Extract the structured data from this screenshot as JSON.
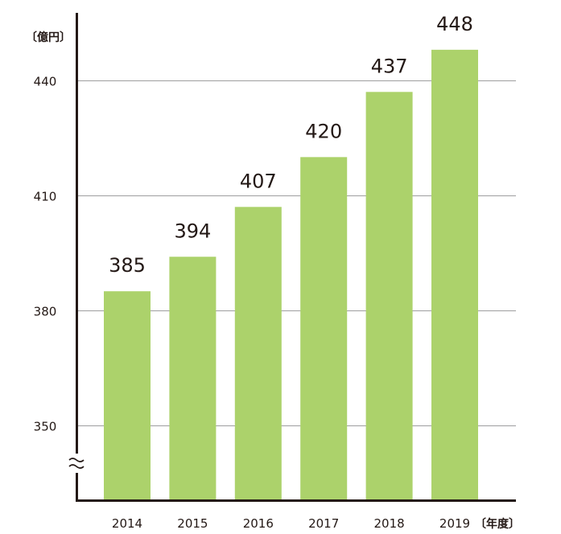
{
  "chart_data": {
    "type": "bar",
    "categories": [
      "2014",
      "2015",
      "2016",
      "2017",
      "2018",
      "2019"
    ],
    "values": [
      385,
      394,
      407,
      420,
      437,
      448
    ],
    "value_labels": [
      "385",
      "394",
      "407",
      "420",
      "437",
      "448"
    ],
    "y_unit": "〔億円〕",
    "x_unit": "〔年度〕",
    "yticks": [
      350,
      380,
      410,
      440
    ],
    "ytick_labels": [
      "350",
      "380",
      "410",
      "440"
    ],
    "ylim": [
      330,
      456
    ],
    "axis_break": true,
    "grid": true,
    "bar_color": "#acd26b",
    "axis_color": "#231815",
    "grid_color": "#9e9e9f"
  }
}
